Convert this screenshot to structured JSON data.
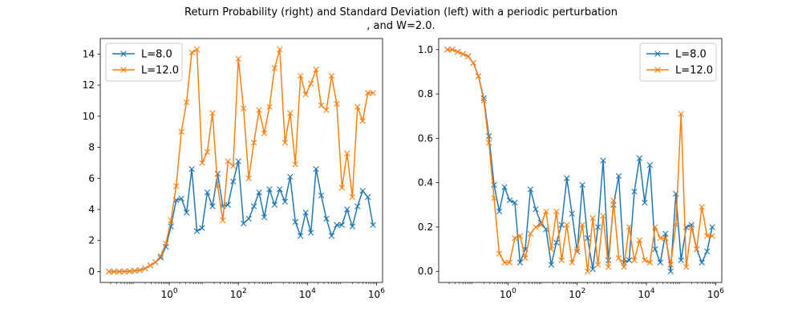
{
  "figure": {
    "title_line1": "Return Probability (right) and Standard Deviation (left) with a periodic perturbation",
    "title_line2": ", and W=2.0."
  },
  "chart_data": [
    {
      "type": "line",
      "panel": "left",
      "xscale": "log",
      "xlim": [
        0.01,
        1500000
      ],
      "ylim": [
        -0.7,
        15.0
      ],
      "xticks": [
        1,
        100,
        10000,
        1000000
      ],
      "xtick_labels": [
        {
          "base": "10",
          "exp": "0"
        },
        {
          "base": "10",
          "exp": "2"
        },
        {
          "base": "10",
          "exp": "4"
        },
        {
          "base": "10",
          "exp": "6"
        }
      ],
      "yticks": [
        0,
        2,
        4,
        6,
        8,
        10,
        12,
        14
      ],
      "ytick_labels": [
        "0",
        "2",
        "4",
        "6",
        "8",
        "10",
        "12",
        "14"
      ],
      "legend_position": "upper-left",
      "marker": "x",
      "x": [
        0.0178,
        0.0251,
        0.0355,
        0.0501,
        0.0708,
        0.1,
        0.141,
        0.2,
        0.282,
        0.398,
        0.562,
        0.794,
        1.12,
        1.58,
        2.24,
        3.16,
        4.47,
        6.31,
        8.91,
        12.6,
        17.8,
        25.1,
        35.5,
        50.1,
        70.8,
        100,
        141,
        200,
        282,
        398,
        562,
        794,
        1120,
        1580,
        2240,
        3160,
        4470,
        6310,
        8910,
        12600,
        17800,
        25100,
        35500,
        50100,
        70800,
        100000,
        141000,
        200000,
        282000,
        398000,
        562000,
        794000
      ],
      "series": [
        {
          "name": "L=8.0",
          "color": "#1f77b4",
          "values": [
            0.0,
            0.0,
            0.0,
            0.01,
            0.02,
            0.05,
            0.1,
            0.2,
            0.4,
            0.6,
            0.9,
            1.6,
            2.9,
            4.6,
            4.7,
            3.8,
            6.6,
            2.6,
            2.8,
            5.1,
            4.2,
            6.3,
            4.2,
            4.3,
            5.8,
            7.1,
            3.1,
            3.4,
            4.2,
            5.1,
            3.5,
            5.3,
            4.3,
            5.3,
            4.5,
            6.1,
            3.2,
            2.3,
            3.8,
            2.5,
            6.6,
            4.9,
            3.4,
            2.3,
            3.0,
            3.0,
            4.0,
            2.9,
            4.2,
            5.2,
            4.8,
            3.0
          ]
        },
        {
          "name": "L=12.0",
          "color": "#ff7f0e",
          "values": [
            0.0,
            0.0,
            0.0,
            0.01,
            0.02,
            0.05,
            0.1,
            0.2,
            0.4,
            0.6,
            1.0,
            1.8,
            3.3,
            5.5,
            9.0,
            10.9,
            14.1,
            14.3,
            7.0,
            7.7,
            10.2,
            5.5,
            3.3,
            7.1,
            6.8,
            13.7,
            10.5,
            6.0,
            8.3,
            10.4,
            8.9,
            10.6,
            13.1,
            14.3,
            8.3,
            10.2,
            6.9,
            12.6,
            11.4,
            12.1,
            13.0,
            10.7,
            10.4,
            12.6,
            10.8,
            5.4,
            7.6,
            4.8,
            10.6,
            9.7,
            11.5,
            11.5
          ]
        }
      ]
    },
    {
      "type": "line",
      "panel": "right",
      "xscale": "log",
      "xlim": [
        0.01,
        1500000
      ],
      "ylim": [
        -0.05,
        1.05
      ],
      "xticks": [
        1,
        100,
        10000,
        1000000
      ],
      "xtick_labels": [
        {
          "base": "10",
          "exp": "0"
        },
        {
          "base": "10",
          "exp": "2"
        },
        {
          "base": "10",
          "exp": "4"
        },
        {
          "base": "10",
          "exp": "6"
        }
      ],
      "yticks": [
        0.0,
        0.2,
        0.4,
        0.6,
        0.8,
        1.0
      ],
      "ytick_labels": [
        "0.0",
        "0.2",
        "0.4",
        "0.6",
        "0.8",
        "1.0"
      ],
      "legend_position": "upper-right",
      "marker": "x",
      "x": [
        0.0178,
        0.0251,
        0.0355,
        0.0501,
        0.0708,
        0.1,
        0.141,
        0.2,
        0.282,
        0.398,
        0.562,
        0.794,
        1.12,
        1.58,
        2.24,
        3.16,
        4.47,
        6.31,
        8.91,
        12.6,
        17.8,
        25.1,
        35.5,
        50.1,
        70.8,
        100,
        141,
        200,
        282,
        398,
        562,
        794,
        1120,
        1580,
        2240,
        3160,
        4470,
        6310,
        8910,
        12600,
        17800,
        25100,
        35500,
        50100,
        70800,
        100000,
        141000,
        200000,
        282000,
        398000,
        562000,
        794000
      ],
      "series": [
        {
          "name": "L=8.0",
          "color": "#1f77b4",
          "values": [
            1.0,
            1.0,
            0.99,
            0.98,
            0.97,
            0.94,
            0.88,
            0.78,
            0.61,
            0.39,
            0.27,
            0.38,
            0.32,
            0.31,
            0.04,
            0.1,
            0.37,
            0.28,
            0.22,
            0.19,
            0.03,
            0.13,
            0.21,
            0.42,
            0.26,
            0.09,
            0.39,
            0.15,
            0.01,
            0.2,
            0.5,
            0.05,
            0.3,
            0.43,
            0.04,
            0.05,
            0.36,
            0.51,
            0.31,
            0.48,
            0.1,
            0.04,
            0.17,
            0.0,
            0.35,
            0.05,
            0.2,
            0.21,
            0.1,
            0.04,
            0.09,
            0.2
          ]
        },
        {
          "name": "L=12.0",
          "color": "#ff7f0e",
          "values": [
            1.0,
            1.0,
            0.99,
            0.98,
            0.97,
            0.94,
            0.88,
            0.77,
            0.58,
            0.33,
            0.08,
            0.04,
            0.04,
            0.15,
            0.16,
            0.06,
            0.17,
            0.2,
            0.21,
            0.27,
            0.1,
            0.27,
            0.05,
            0.21,
            0.04,
            0.1,
            0.21,
            0.0,
            0.24,
            0.03,
            0.25,
            0.02,
            0.32,
            0.06,
            0.02,
            0.2,
            0.05,
            0.14,
            0.05,
            0.04,
            0.2,
            0.15,
            0.15,
            0.03,
            0.21,
            0.71,
            0.02,
            0.2,
            0.1,
            0.29,
            0.16,
            0.16
          ]
        }
      ]
    }
  ]
}
